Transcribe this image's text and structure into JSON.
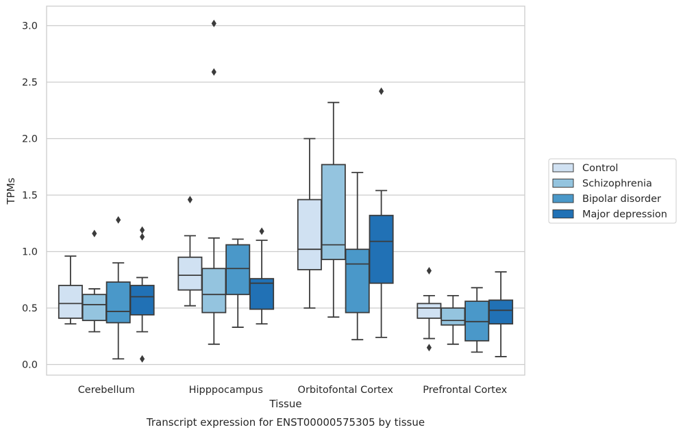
{
  "chart_data": {
    "type": "box",
    "categories": [
      "Cerebellum",
      "Hipppocampus",
      "Orbitofontal Cortex",
      "Prefrontal Cortex"
    ],
    "xlabel": "Tissue",
    "ylabel": "TPMs",
    "caption": "Transcript expression for ENST00000575305 by tissue",
    "ylim": [
      -0.09,
      3.17
    ],
    "yticks": [
      0.0,
      0.5,
      1.0,
      1.5,
      2.0,
      2.5,
      3.0
    ],
    "ytick_labels": [
      "0.0",
      "0.5",
      "1.0",
      "1.5",
      "2.0",
      "2.5",
      "3.0"
    ],
    "grid": "horizontal",
    "legend_position": "right",
    "series": [
      {
        "name": "Control",
        "color": "#d0e1f2",
        "boxes": [
          {
            "whislo": 0.36,
            "q1": 0.41,
            "median": 0.54,
            "q3": 0.7,
            "whishi": 0.96,
            "fliers": []
          },
          {
            "whislo": 0.52,
            "q1": 0.66,
            "median": 0.79,
            "q3": 0.95,
            "whishi": 1.14,
            "fliers": [
              1.46
            ]
          },
          {
            "whislo": 0.5,
            "q1": 0.84,
            "median": 1.02,
            "q3": 1.46,
            "whishi": 2.0,
            "fliers": []
          },
          {
            "whislo": 0.23,
            "q1": 0.41,
            "median": 0.5,
            "q3": 0.54,
            "whishi": 0.61,
            "fliers": [
              0.83,
              0.15
            ]
          }
        ]
      },
      {
        "name": "Schizophrenia",
        "color": "#94c4df",
        "boxes": [
          {
            "whislo": 0.29,
            "q1": 0.39,
            "median": 0.53,
            "q3": 0.62,
            "whishi": 0.67,
            "fliers": [
              1.16
            ]
          },
          {
            "whislo": 0.18,
            "q1": 0.46,
            "median": 0.62,
            "q3": 0.85,
            "whishi": 1.12,
            "fliers": [
              2.59,
              3.02
            ]
          },
          {
            "whislo": 0.42,
            "q1": 0.93,
            "median": 1.06,
            "q3": 1.77,
            "whishi": 2.32,
            "fliers": []
          },
          {
            "whislo": 0.18,
            "q1": 0.35,
            "median": 0.39,
            "q3": 0.5,
            "whishi": 0.61,
            "fliers": []
          }
        ]
      },
      {
        "name": "Bipolar disorder",
        "color": "#4a98c9",
        "boxes": [
          {
            "whislo": 0.05,
            "q1": 0.37,
            "median": 0.47,
            "q3": 0.73,
            "whishi": 0.9,
            "fliers": [
              1.28
            ]
          },
          {
            "whislo": 0.33,
            "q1": 0.62,
            "median": 0.85,
            "q3": 1.06,
            "whishi": 1.11,
            "fliers": []
          },
          {
            "whislo": 0.22,
            "q1": 0.46,
            "median": 0.89,
            "q3": 1.02,
            "whishi": 1.7,
            "fliers": []
          },
          {
            "whislo": 0.11,
            "q1": 0.21,
            "median": 0.38,
            "q3": 0.56,
            "whishi": 0.68,
            "fliers": []
          }
        ]
      },
      {
        "name": "Major depression",
        "color": "#2171b5",
        "boxes": [
          {
            "whislo": 0.29,
            "q1": 0.44,
            "median": 0.6,
            "q3": 0.7,
            "whishi": 0.77,
            "fliers": [
              1.19,
              1.13,
              0.05
            ]
          },
          {
            "whislo": 0.36,
            "q1": 0.49,
            "median": 0.72,
            "q3": 0.76,
            "whishi": 1.1,
            "fliers": [
              1.18
            ]
          },
          {
            "whislo": 0.24,
            "q1": 0.72,
            "median": 1.09,
            "q3": 1.32,
            "whishi": 1.54,
            "fliers": [
              2.42
            ]
          },
          {
            "whislo": 0.07,
            "q1": 0.36,
            "median": 0.48,
            "q3": 0.57,
            "whishi": 0.82,
            "fliers": []
          }
        ]
      }
    ]
  }
}
